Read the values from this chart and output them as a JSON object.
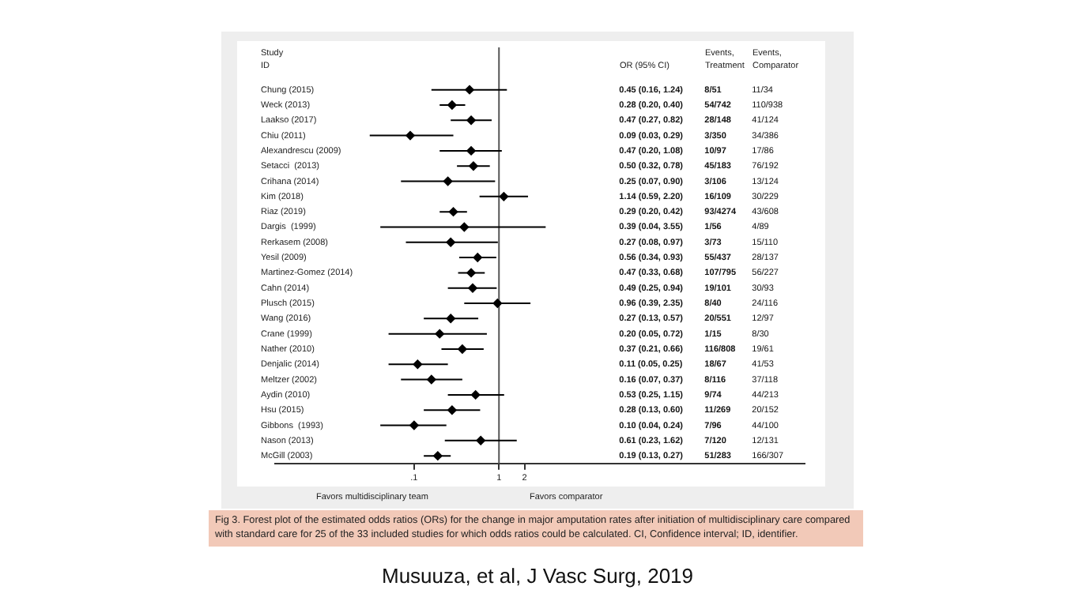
{
  "chart_data": {
    "type": "scatter",
    "orientation": "horizontal",
    "ylabel": "Study\nID",
    "categories": [
      "Chung (2015)",
      "Weck (2013)",
      "Laakso (2017)",
      "Chiu (2011)",
      "Alexandrescu (2009)",
      "Setacci  (2013)",
      "Crihana (2014)",
      "Kim (2018)",
      "Riaz (2019)",
      "Dargis  (1999)",
      "Rerkasem (2008)",
      "Yesil (2009)",
      "Martinez-Gomez (2014)",
      "Cahn (2014)",
      "Plusch (2015)",
      "Wang (2016)",
      "Crane (1999)",
      "Nather (2010)",
      "Denjalic (2014)",
      "Meltzer (2002)",
      "Aydin (2010)",
      "Hsu (2015)",
      "Gibbons  (1993)",
      "Nason (2013)",
      "McGill (2003)"
    ],
    "series": [
      {
        "color": "#000000",
        "values": [
          0.45,
          0.28,
          0.47,
          0.09,
          0.47,
          0.5,
          0.25,
          1.14,
          0.29,
          0.39,
          0.27,
          0.56,
          0.47,
          0.49,
          0.96,
          0.27,
          0.2,
          0.37,
          0.11,
          0.16,
          0.53,
          0.28,
          0.1,
          0.61,
          0.19
        ],
        "errors": [
          [
            0.16,
            1.24
          ],
          [
            0.2,
            0.4
          ],
          [
            0.27,
            0.82
          ],
          [
            0.03,
            0.29
          ],
          [
            0.2,
            1.08
          ],
          [
            0.32,
            0.78
          ],
          [
            0.07,
            0.9
          ],
          [
            0.59,
            2.2
          ],
          [
            0.2,
            0.42
          ],
          [
            0.04,
            3.55
          ],
          [
            0.08,
            0.97
          ],
          [
            0.34,
            0.93
          ],
          [
            0.33,
            0.68
          ],
          [
            0.25,
            0.94
          ],
          [
            0.39,
            2.35
          ],
          [
            0.13,
            0.57
          ],
          [
            0.05,
            0.72
          ],
          [
            0.21,
            0.66
          ],
          [
            0.05,
            0.25
          ],
          [
            0.07,
            0.37
          ],
          [
            0.25,
            1.15
          ],
          [
            0.13,
            0.6
          ],
          [
            0.04,
            0.24
          ],
          [
            0.23,
            1.62
          ],
          [
            0.13,
            0.27
          ]
        ]
      }
    ],
    "log": "x",
    "xlim": [
      0.0023,
      4000
    ],
    "xticks": [
      {
        "value": 0.1,
        "label": ".1"
      },
      1,
      2
    ],
    "ref_lines": [
      {
        "axis": "x",
        "value": 1,
        "color": "#555555"
      }
    ],
    "marker": "diamond",
    "grid": false,
    "legend": false,
    "annotations": [
      "OR (95% CI)",
      "Events,\nTreatment",
      "Events,\nComparator",
      "Favors multidisciplinary team",
      "Favors comparator",
      "Fig 3. Forest plot of the estimated odds ratios (ORs) for the change in major amputation rates after initiation of multidisciplinary care compared with standard care for 25 of the 33 included studies for which odds ratios could be calculated. CI, Confidence interval; ID, identifier.",
      "Musuuza, et al, J Vasc Surg, 2019",
      "0.45 (0.16, 1.24)",
      "8/51",
      "11/34",
      "0.28 (0.20, 0.40)",
      "54/742",
      "110/938",
      "0.47 (0.27, 0.82)",
      "28/148",
      "41/124",
      "0.09 (0.03, 0.29)",
      "3/350",
      "34/386",
      "0.47 (0.20, 1.08)",
      "10/97",
      "17/86",
      "0.50 (0.32, 0.78)",
      "45/183",
      "76/192",
      "0.25 (0.07, 0.90)",
      "3/106",
      "13/124",
      "1.14 (0.59, 2.20)",
      "16/109",
      "30/229",
      "0.29 (0.20, 0.42)",
      "93/4274",
      "43/608",
      "0.39 (0.04, 3.55)",
      "1/56",
      "4/89",
      "0.27 (0.08, 0.97)",
      "3/73",
      "15/110",
      "0.56 (0.34, 0.93)",
      "55/437",
      "28/137",
      "0.47 (0.33, 0.68)",
      "107/795",
      "56/227",
      "0.49 (0.25, 0.94)",
      "19/101",
      "30/93",
      "0.96 (0.39, 2.35)",
      "8/40",
      "24/116",
      "0.27 (0.13, 0.57)",
      "20/551",
      "12/97",
      "0.20 (0.05, 0.72)",
      "1/15",
      "8/30",
      "0.37 (0.21, 0.66)",
      "116/808",
      "19/61",
      "0.11 (0.05, 0.25)",
      "18/67",
      "41/53",
      "0.16 (0.07, 0.37)",
      "8/116",
      "37/118",
      "0.53 (0.25, 1.15)",
      "9/74",
      "44/213",
      "0.28 (0.13, 0.60)",
      "11/269",
      "20/152",
      "0.10 (0.04, 0.24)",
      "7/96",
      "44/100",
      "0.61 (0.23, 1.62)",
      "7/120",
      "12/131",
      "0.19 (0.13, 0.27)",
      "51/283",
      "166/307"
    ]
  }
}
